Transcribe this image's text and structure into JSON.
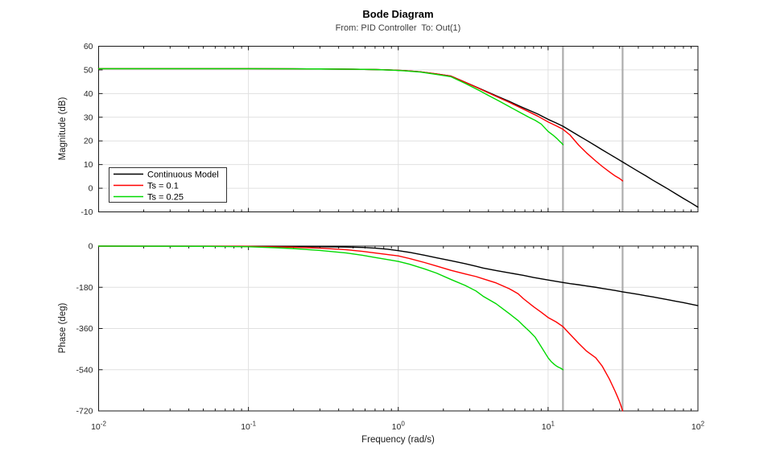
{
  "chart_data": {
    "type": "line",
    "title": "Bode Diagram",
    "subtitle": "From: PID Controller  To: Out(1)",
    "xlabel": "Frequency (rad/s)",
    "xscale": "log",
    "xlim": [
      0.01,
      100
    ],
    "x_ticks": [
      {
        "value": 0.01,
        "base": "10",
        "exp": "-2"
      },
      {
        "value": 0.1,
        "base": "10",
        "exp": "-1"
      },
      {
        "value": 1,
        "base": "10",
        "exp": "0"
      },
      {
        "value": 10,
        "base": "10",
        "exp": "1"
      },
      {
        "value": 100,
        "base": "10",
        "exp": "2"
      }
    ],
    "grid": true,
    "nyquist_lines_rad_s": [
      12.566,
      31.416
    ],
    "colors": {
      "axis": "#1a1a1a",
      "grid": "#e0e0e0",
      "tick_label": "#262626",
      "nyquist_line": "#adadad",
      "continuous": "#000000",
      "ts01": "#ff0000",
      "ts025": "#00d900"
    },
    "legend": {
      "position": "northwest",
      "entries": [
        {
          "label": "Continuous Model",
          "color": "#000000"
        },
        {
          "label": "Ts = 0.1",
          "color": "#ff0000"
        },
        {
          "label": "Ts = 0.25",
          "color": "#00d900"
        }
      ]
    },
    "subplots": [
      {
        "name": "magnitude",
        "ylabel": "Magnitude (dB)",
        "ylim": [
          -10,
          60
        ],
        "yticks": [
          60,
          50,
          40,
          30,
          20,
          10,
          0,
          -10
        ],
        "series": [
          {
            "name": "Continuous Model",
            "color": "#000000",
            "points": [
              [
                0.01,
                50.5
              ],
              [
                0.03,
                50.5
              ],
              [
                0.06,
                50.5
              ],
              [
                0.1,
                50.5
              ],
              [
                0.2,
                50.45
              ],
              [
                0.3,
                50.4
              ],
              [
                0.5,
                50.3
              ],
              [
                0.7,
                50.15
              ],
              [
                0.9,
                49.95
              ],
              [
                1.1,
                49.7
              ],
              [
                1.4,
                49.2
              ],
              [
                1.8,
                48.3
              ],
              [
                2.25,
                47.4
              ],
              [
                2.8,
                44.8
              ],
              [
                3.5,
                42.1
              ],
              [
                4,
                40.5
              ],
              [
                4.72,
                38.5
              ],
              [
                5.5,
                36.7
              ],
              [
                6.5,
                34.6
              ],
              [
                7.5,
                32.9
              ],
              [
                8.5,
                31.4
              ],
              [
                10,
                29.1
              ],
              [
                11.3,
                27.6
              ],
              [
                12.57,
                26.2
              ],
              [
                14,
                24.4
              ],
              [
                16,
                22.2
              ],
              [
                18,
                20.3
              ],
              [
                20.8,
                17.9
              ],
              [
                23,
                16.2
              ],
              [
                25.7,
                14.4
              ],
              [
                28,
                13.0
              ],
              [
                31.4,
                11.1
              ],
              [
                35,
                9.3
              ],
              [
                40,
                7.1
              ],
              [
                45,
                5.2
              ],
              [
                50,
                3.4
              ],
              [
                56,
                1.6
              ],
              [
                63,
                -0.3
              ],
              [
                71,
                -2.3
              ],
              [
                80,
                -4.3
              ],
              [
                90,
                -6.2
              ],
              [
                100,
                -8.0
              ]
            ]
          },
          {
            "name": "Ts = 0.1",
            "color": "#ff0000",
            "points": [
              [
                0.01,
                50.5
              ],
              [
                0.05,
                50.5
              ],
              [
                0.1,
                50.5
              ],
              [
                0.2,
                50.45
              ],
              [
                0.3,
                50.4
              ],
              [
                0.5,
                50.3
              ],
              [
                0.7,
                50.15
              ],
              [
                0.9,
                49.95
              ],
              [
                1.1,
                49.7
              ],
              [
                1.4,
                49.2
              ],
              [
                1.8,
                48.3
              ],
              [
                2.25,
                47.35
              ],
              [
                2.8,
                44.75
              ],
              [
                3.5,
                42.0
              ],
              [
                4,
                40.3
              ],
              [
                4.72,
                38.2
              ],
              [
                5.5,
                36.3
              ],
              [
                6.5,
                34.1
              ],
              [
                7.5,
                32.2
              ],
              [
                8.5,
                30.5
              ],
              [
                10,
                28.0
              ],
              [
                11.3,
                26.4
              ],
              [
                12.57,
                24.9
              ],
              [
                14,
                22.5
              ],
              [
                16,
                18.2
              ],
              [
                18,
                15.0
              ],
              [
                20.8,
                11.5
              ],
              [
                23,
                9.2
              ],
              [
                25.7,
                6.9
              ],
              [
                28,
                5.2
              ],
              [
                30,
                4.1
              ],
              [
                31.42,
                3.1
              ]
            ]
          },
          {
            "name": "Ts = 0.25",
            "color": "#00d900",
            "points": [
              [
                0.01,
                50.5
              ],
              [
                0.05,
                50.5
              ],
              [
                0.1,
                50.5
              ],
              [
                0.2,
                50.45
              ],
              [
                0.3,
                50.4
              ],
              [
                0.5,
                50.3
              ],
              [
                0.7,
                50.15
              ],
              [
                0.9,
                49.9
              ],
              [
                1.1,
                49.6
              ],
              [
                1.4,
                49.1
              ],
              [
                1.8,
                48.1
              ],
              [
                2.25,
                47.1
              ],
              [
                2.8,
                44.3
              ],
              [
                3.5,
                41.2
              ],
              [
                4,
                39.2
              ],
              [
                4.72,
                36.8
              ],
              [
                5.5,
                34.5
              ],
              [
                6.5,
                32.0
              ],
              [
                7.5,
                29.9
              ],
              [
                8.2,
                28.7
              ],
              [
                9,
                27.1
              ],
              [
                10,
                24.0
              ],
              [
                10.8,
                22.4
              ],
              [
                11.5,
                20.9
              ],
              [
                12,
                19.7
              ],
              [
                12.3,
                19.1
              ],
              [
                12.57,
                18.4
              ]
            ]
          }
        ]
      },
      {
        "name": "phase",
        "ylabel": "Phase (deg)",
        "ylim": [
          -720,
          0
        ],
        "yticks": [
          0,
          -180,
          -360,
          -540,
          -720
        ],
        "series": [
          {
            "name": "Continuous Model",
            "color": "#000000",
            "points": [
              [
                0.01,
                -0.1
              ],
              [
                0.05,
                -0.4
              ],
              [
                0.1,
                -0.8
              ],
              [
                0.2,
                -1.6
              ],
              [
                0.3,
                -2.6
              ],
              [
                0.45,
                -4.3
              ],
              [
                0.577,
                -6
              ],
              [
                0.7,
                -9
              ],
              [
                0.85,
                -14
              ],
              [
                1,
                -20
              ],
              [
                1.2,
                -28
              ],
              [
                1.5,
                -40
              ],
              [
                1.8,
                -51
              ],
              [
                2.25,
                -64
              ],
              [
                2.8,
                -77
              ],
              [
                3.3,
                -88
              ],
              [
                3.68,
                -96
              ],
              [
                4.5,
                -107
              ],
              [
                5.5,
                -117
              ],
              [
                6.85,
                -128
              ],
              [
                8,
                -137
              ],
              [
                10,
                -148
              ],
              [
                12.57,
                -159
              ],
              [
                14,
                -164
              ],
              [
                16,
                -169
              ],
              [
                18,
                -174
              ],
              [
                20.8,
                -180
              ],
              [
                23,
                -185
              ],
              [
                25.7,
                -190
              ],
              [
                28,
                -194
              ],
              [
                31.4,
                -200
              ],
              [
                35,
                -205
              ],
              [
                40,
                -211
              ],
              [
                45,
                -217
              ],
              [
                50,
                -222
              ],
              [
                56,
                -228
              ],
              [
                63,
                -234
              ],
              [
                71,
                -241
              ],
              [
                80,
                -247
              ],
              [
                90,
                -254
              ],
              [
                100,
                -260
              ]
            ]
          },
          {
            "name": "Ts = 0.1",
            "color": "#ff0000",
            "points": [
              [
                0.01,
                -0.1
              ],
              [
                0.05,
                -0.6
              ],
              [
                0.1,
                -1.3
              ],
              [
                0.2,
                -5
              ],
              [
                0.3,
                -9
              ],
              [
                0.45,
                -16
              ],
              [
                0.577,
                -23
              ],
              [
                0.7,
                -30
              ],
              [
                0.85,
                -37
              ],
              [
                1,
                -43
              ],
              [
                1.2,
                -55
              ],
              [
                1.5,
                -72
              ],
              [
                1.8,
                -87
              ],
              [
                2.25,
                -106
              ],
              [
                2.8,
                -122
              ],
              [
                3.3,
                -133
              ],
              [
                3.68,
                -143
              ],
              [
                4.5,
                -161
              ],
              [
                5.5,
                -186
              ],
              [
                6.3,
                -208
              ],
              [
                6.85,
                -230
              ],
              [
                8,
                -265
              ],
              [
                9,
                -289
              ],
              [
                10,
                -312
              ],
              [
                11.3,
                -331
              ],
              [
                12.57,
                -352
              ],
              [
                14,
                -385
              ],
              [
                16,
                -425
              ],
              [
                18,
                -458
              ],
              [
                20.8,
                -488
              ],
              [
                23,
                -525
              ],
              [
                25.7,
                -582
              ],
              [
                27,
                -612
              ],
              [
                28,
                -634
              ],
              [
                29,
                -657
              ],
              [
                30,
                -680
              ],
              [
                30.8,
                -702
              ],
              [
                31.3,
                -716
              ],
              [
                31.42,
                -720
              ]
            ]
          },
          {
            "name": "Ts = 0.25",
            "color": "#00d900",
            "points": [
              [
                0.01,
                -0.2
              ],
              [
                0.05,
                -1
              ],
              [
                0.1,
                -3
              ],
              [
                0.15,
                -7
              ],
              [
                0.2,
                -11
              ],
              [
                0.3,
                -19
              ],
              [
                0.45,
                -30
              ],
              [
                0.577,
                -40
              ],
              [
                0.7,
                -50
              ],
              [
                0.85,
                -59
              ],
              [
                1,
                -67
              ],
              [
                1.2,
                -80
              ],
              [
                1.5,
                -100
              ],
              [
                1.8,
                -118
              ],
              [
                2.25,
                -146
              ],
              [
                2.8,
                -172
              ],
              [
                3.3,
                -196
              ],
              [
                3.68,
                -219
              ],
              [
                4.5,
                -252
              ],
              [
                5.5,
                -295
              ],
              [
                6.3,
                -325
              ],
              [
                6.85,
                -348
              ],
              [
                7.5,
                -372
              ],
              [
                8.2,
                -398
              ],
              [
                9,
                -440
              ],
              [
                10,
                -488
              ],
              [
                10.5,
                -505
              ],
              [
                11,
                -517
              ],
              [
                11.5,
                -526
              ],
              [
                11.8,
                -530
              ],
              [
                12.1,
                -533
              ],
              [
                12.57,
                -540
              ]
            ]
          }
        ]
      }
    ]
  }
}
